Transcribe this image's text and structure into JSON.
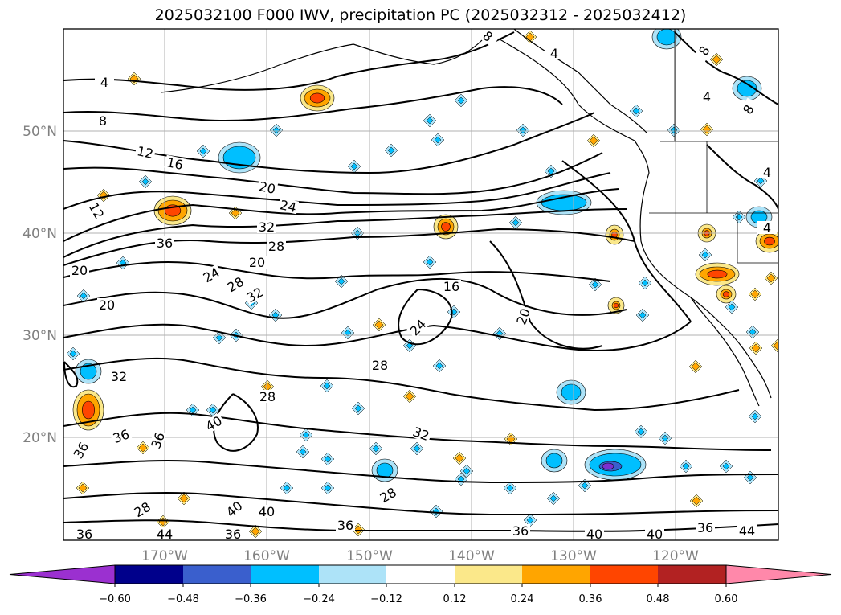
{
  "title": "2025032100 F000 IWV, precipitation PC (2025032312 - 2025032412)",
  "map": {
    "lat_ticks": [
      "50°N",
      "40°N",
      "30°N",
      "20°N"
    ],
    "lon_ticks": [
      "170°W",
      "160°W",
      "150°W",
      "140°W",
      "130°W",
      "120°W"
    ],
    "contour_levels": [
      "4",
      "8",
      "12",
      "16",
      "20",
      "24",
      "28",
      "32",
      "36",
      "40",
      "44"
    ],
    "contour_labels": [
      {
        "t": "4"
      },
      {
        "t": "8"
      },
      {
        "t": "12"
      },
      {
        "t": "16"
      },
      {
        "t": "20"
      },
      {
        "t": "24"
      },
      {
        "t": "32"
      },
      {
        "t": "28"
      },
      {
        "t": "20"
      },
      {
        "t": "24"
      },
      {
        "t": "28"
      },
      {
        "t": "32"
      },
      {
        "t": "36"
      },
      {
        "t": "20"
      },
      {
        "t": "20"
      },
      {
        "t": "16"
      },
      {
        "t": "24"
      },
      {
        "t": "20"
      },
      {
        "t": "28"
      },
      {
        "t": "32"
      },
      {
        "t": "36"
      },
      {
        "t": "36"
      },
      {
        "t": "40"
      },
      {
        "t": "36"
      },
      {
        "t": "28"
      },
      {
        "t": "28"
      },
      {
        "t": "40"
      },
      {
        "t": "40"
      },
      {
        "t": "36"
      },
      {
        "t": "44"
      },
      {
        "t": "36"
      },
      {
        "t": "36"
      },
      {
        "t": "36"
      },
      {
        "t": "40"
      },
      {
        "t": "36"
      },
      {
        "t": "40"
      },
      {
        "t": "44"
      },
      {
        "t": "8"
      },
      {
        "t": "4"
      },
      {
        "t": "8"
      },
      {
        "t": "8"
      },
      {
        "t": "4"
      },
      {
        "t": "4"
      },
      {
        "t": "4"
      },
      {
        "t": "28"
      },
      {
        "t": "32"
      },
      {
        "t": "12"
      }
    ]
  },
  "colorbar": {
    "tick_labels": [
      "−0.60",
      "−0.48",
      "−0.36",
      "−0.24",
      "−0.12",
      "0.12",
      "0.24",
      "0.36",
      "0.48",
      "0.60"
    ],
    "colors": [
      "#9b30d0",
      "#00008b",
      "#3a5fcd",
      "#00bfff",
      "#ade3f8",
      "#ffffff",
      "#fbe88a",
      "#ffa500",
      "#ff4500",
      "#b22222",
      "#ff88aa"
    ]
  },
  "colors": {
    "contour": "#000000",
    "grid": "#b0b0b0",
    "tick_label": "#808080"
  }
}
